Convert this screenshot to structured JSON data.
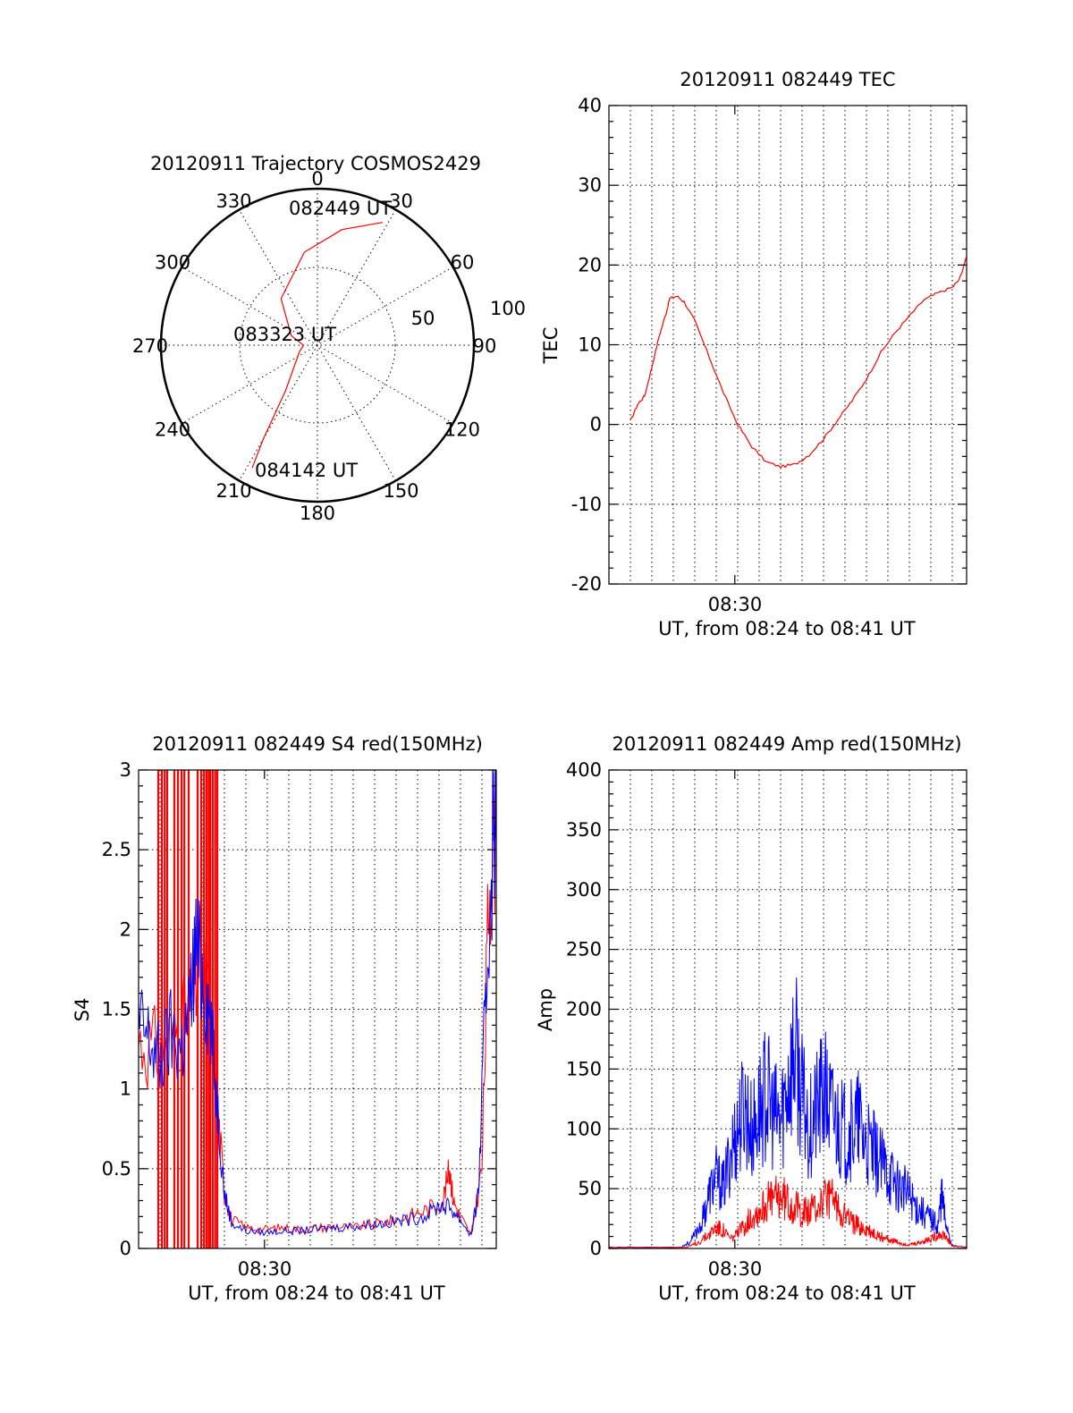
{
  "colors": {
    "red": "#ff0000",
    "blue": "#0000ff",
    "grid": "#000000",
    "background": "#ffffff"
  },
  "polar": {
    "title": "20120911 Trajectory COSMOS2429",
    "azimuth_labels": [
      "0",
      "30",
      "60",
      "90",
      "120",
      "150",
      "180",
      "210",
      "240",
      "270",
      "300",
      "330"
    ],
    "ring_labels": [
      "50",
      "100"
    ],
    "start_label": "082449 UT",
    "mid_label": "083323 UT",
    "end_label": "084142 UT"
  },
  "chart_data": [
    {
      "type": "line",
      "title": "20120911 082449 TEC",
      "xlabel": "UT, from 08:24 to 08:41 UT",
      "ylabel": "TEC",
      "xtick_label": "08:30",
      "ylim": [
        -20,
        40
      ],
      "yticks": [
        "-20",
        "-10",
        "0",
        "10",
        "20",
        "30",
        "40"
      ],
      "grid": true,
      "series": [
        {
          "color": "#ff0000",
          "points": [
            [
              0.06,
              0.4
            ],
            [
              0.08,
              2.5
            ],
            [
              0.1,
              3.6
            ],
            [
              0.12,
              7.2
            ],
            [
              0.14,
              11
            ],
            [
              0.16,
              14
            ],
            [
              0.17,
              15.8
            ],
            [
              0.19,
              16.1
            ],
            [
              0.21,
              15.4
            ],
            [
              0.24,
              13
            ],
            [
              0.28,
              8.5
            ],
            [
              0.32,
              4
            ],
            [
              0.36,
              0
            ],
            [
              0.4,
              -2.8
            ],
            [
              0.44,
              -4.7
            ],
            [
              0.48,
              -5.3
            ],
            [
              0.52,
              -5
            ],
            [
              0.56,
              -3.8
            ],
            [
              0.6,
              -1.8
            ],
            [
              0.64,
              0.6
            ],
            [
              0.68,
              3
            ],
            [
              0.72,
              5.7
            ],
            [
              0.76,
              9
            ],
            [
              0.8,
              11.5
            ],
            [
              0.84,
              13.6
            ],
            [
              0.88,
              15.6
            ],
            [
              0.92,
              16.5
            ],
            [
              0.96,
              17.2
            ],
            [
              0.98,
              18.2
            ],
            [
              1.0,
              21
            ]
          ]
        }
      ]
    },
    {
      "type": "line",
      "title": "20120911 082449 S4 red(150MHz)",
      "xlabel": "UT, from 08:24 to 08:41 UT",
      "ylabel": "S4",
      "xtick_label": "08:30",
      "ylim": [
        0,
        3
      ],
      "yticks": [
        "0",
        "0.5",
        "1",
        "1.5",
        "2",
        "2.5",
        "3"
      ],
      "grid": true,
      "spikes": {
        "color": "#ff0000",
        "x": [
          0.055,
          0.065,
          0.073,
          0.08,
          0.1,
          0.11,
          0.12,
          0.128,
          0.14,
          0.165,
          0.175,
          0.183,
          0.19,
          0.196,
          0.2,
          0.207,
          0.214,
          0.22
        ]
      },
      "series": [
        {
          "color": "#ff0000",
          "points": [
            [
              0.0,
              1.3
            ],
            [
              0.05,
              1.25
            ],
            [
              0.1,
              1.35
            ],
            [
              0.14,
              1.5
            ],
            [
              0.17,
              1.8
            ],
            [
              0.2,
              1.5
            ],
            [
              0.22,
              0.9
            ],
            [
              0.24,
              0.35
            ],
            [
              0.26,
              0.18
            ],
            [
              0.3,
              0.13
            ],
            [
              0.35,
              0.12
            ],
            [
              0.4,
              0.13
            ],
            [
              0.45,
              0.12
            ],
            [
              0.5,
              0.13
            ],
            [
              0.55,
              0.14
            ],
            [
              0.6,
              0.13
            ],
            [
              0.65,
              0.15
            ],
            [
              0.7,
              0.17
            ],
            [
              0.75,
              0.2
            ],
            [
              0.8,
              0.24
            ],
            [
              0.85,
              0.3
            ],
            [
              0.87,
              0.5
            ],
            [
              0.88,
              0.3
            ],
            [
              0.9,
              0.2
            ],
            [
              0.93,
              0.08
            ],
            [
              0.96,
              0.5
            ],
            [
              0.98,
              2.3
            ],
            [
              1.0,
              2.8
            ]
          ]
        },
        {
          "color": "#0000ff",
          "points": [
            [
              0.0,
              1.4
            ],
            [
              0.03,
              1.3
            ],
            [
              0.06,
              1.15
            ],
            [
              0.09,
              1.35
            ],
            [
              0.12,
              1.25
            ],
            [
              0.14,
              1.45
            ],
            [
              0.16,
              1.9
            ],
            [
              0.18,
              1.7
            ],
            [
              0.2,
              1.45
            ],
            [
              0.22,
              0.9
            ],
            [
              0.24,
              0.35
            ],
            [
              0.26,
              0.16
            ],
            [
              0.3,
              0.11
            ],
            [
              0.35,
              0.1
            ],
            [
              0.4,
              0.11
            ],
            [
              0.45,
              0.11
            ],
            [
              0.5,
              0.12
            ],
            [
              0.55,
              0.13
            ],
            [
              0.6,
              0.14
            ],
            [
              0.65,
              0.15
            ],
            [
              0.7,
              0.16
            ],
            [
              0.75,
              0.18
            ],
            [
              0.8,
              0.2
            ],
            [
              0.84,
              0.27
            ],
            [
              0.87,
              0.26
            ],
            [
              0.9,
              0.18
            ],
            [
              0.93,
              0.08
            ],
            [
              0.95,
              0.35
            ],
            [
              0.97,
              1.5
            ],
            [
              0.99,
              2.6
            ],
            [
              1.0,
              3.0
            ]
          ]
        }
      ]
    },
    {
      "type": "line",
      "title": "20120911 082449 Amp red(150MHz)",
      "xlabel": "UT, from 08:24 to 08:41 UT",
      "ylabel": "Amp",
      "xtick_label": "08:30",
      "ylim": [
        0,
        400
      ],
      "yticks": [
        "0",
        "50",
        "100",
        "150",
        "200",
        "250",
        "300",
        "350",
        "400"
      ],
      "grid": true,
      "series": [
        {
          "color": "#0000ff",
          "points": [
            [
              0.0,
              1
            ],
            [
              0.2,
              1
            ],
            [
              0.23,
              6
            ],
            [
              0.26,
              22
            ],
            [
              0.28,
              45
            ],
            [
              0.3,
              60
            ],
            [
              0.32,
              50
            ],
            [
              0.34,
              80
            ],
            [
              0.36,
              100
            ],
            [
              0.38,
              120
            ],
            [
              0.4,
              95
            ],
            [
              0.42,
              115
            ],
            [
              0.44,
              130
            ],
            [
              0.46,
              110
            ],
            [
              0.48,
              105
            ],
            [
              0.5,
              140
            ],
            [
              0.52,
              165
            ],
            [
              0.54,
              125
            ],
            [
              0.56,
              100
            ],
            [
              0.58,
              115
            ],
            [
              0.6,
              130
            ],
            [
              0.62,
              115
            ],
            [
              0.64,
              105
            ],
            [
              0.66,
              95
            ],
            [
              0.68,
              100
            ],
            [
              0.7,
              105
            ],
            [
              0.72,
              85
            ],
            [
              0.74,
              80
            ],
            [
              0.76,
              70
            ],
            [
              0.78,
              65
            ],
            [
              0.8,
              55
            ],
            [
              0.82,
              50
            ],
            [
              0.84,
              45
            ],
            [
              0.86,
              35
            ],
            [
              0.88,
              30
            ],
            [
              0.9,
              25
            ],
            [
              0.92,
              20
            ],
            [
              0.93,
              45
            ],
            [
              0.94,
              25
            ],
            [
              0.96,
              2
            ],
            [
              1.0,
              1
            ]
          ]
        },
        {
          "color": "#ff0000",
          "points": [
            [
              0.0,
              1
            ],
            [
              0.22,
              1
            ],
            [
              0.25,
              5
            ],
            [
              0.28,
              12
            ],
            [
              0.3,
              18
            ],
            [
              0.32,
              15
            ],
            [
              0.34,
              8
            ],
            [
              0.36,
              12
            ],
            [
              0.38,
              20
            ],
            [
              0.4,
              28
            ],
            [
              0.42,
              32
            ],
            [
              0.44,
              38
            ],
            [
              0.46,
              42
            ],
            [
              0.48,
              45
            ],
            [
              0.5,
              40
            ],
            [
              0.52,
              35
            ],
            [
              0.54,
              32
            ],
            [
              0.56,
              30
            ],
            [
              0.58,
              35
            ],
            [
              0.6,
              40
            ],
            [
              0.62,
              42
            ],
            [
              0.64,
              35
            ],
            [
              0.66,
              28
            ],
            [
              0.68,
              22
            ],
            [
              0.7,
              18
            ],
            [
              0.72,
              15
            ],
            [
              0.74,
              12
            ],
            [
              0.76,
              10
            ],
            [
              0.78,
              8
            ],
            [
              0.8,
              6
            ],
            [
              0.82,
              4
            ],
            [
              0.84,
              3
            ],
            [
              0.86,
              4
            ],
            [
              0.88,
              6
            ],
            [
              0.9,
              8
            ],
            [
              0.92,
              12
            ],
            [
              0.94,
              10
            ],
            [
              0.96,
              2
            ],
            [
              1.0,
              1
            ]
          ]
        }
      ]
    }
  ]
}
